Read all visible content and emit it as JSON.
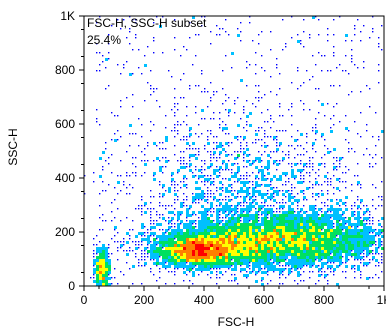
{
  "chart_data": {
    "type": "scatter",
    "plot_kind": "flow cytometry density dot plot",
    "title": "",
    "annotation_gate_name": "FSC-H, SSC-H subset",
    "annotation_percent": "25.4%",
    "xlabel": "FSC-H",
    "ylabel": "SSC-H",
    "xlim": [
      0,
      1000
    ],
    "ylim": [
      0,
      1000
    ],
    "x_ticks": [
      {
        "value": 0,
        "label": "0"
      },
      {
        "value": 200,
        "label": "200"
      },
      {
        "value": 400,
        "label": "400"
      },
      {
        "value": 600,
        "label": "600"
      },
      {
        "value": 800,
        "label": "800"
      },
      {
        "value": 1000,
        "label": "1K"
      }
    ],
    "y_ticks": [
      {
        "value": 0,
        "label": "0"
      },
      {
        "value": 200,
        "label": "200"
      },
      {
        "value": 400,
        "label": "400"
      },
      {
        "value": 600,
        "label": "600"
      },
      {
        "value": 800,
        "label": "800"
      },
      {
        "value": 1000,
        "label": "1K"
      }
    ],
    "density_colormap": [
      "#0000ff",
      "#00c0ff",
      "#00e060",
      "#ffff00",
      "#ff8000",
      "#ff0000"
    ],
    "populations": [
      {
        "name": "",
        "x_center": 380,
        "y_center": 130,
        "x_spread": 70,
        "y_spread": 28,
        "count": 2600
      },
      {
        "name": "",
        "x_center": 560,
        "y_center": 165,
        "x_spread": 150,
        "y_spread": 45,
        "count": 3800
      },
      {
        "name": "",
        "x_center": 760,
        "y_center": 175,
        "x_spread": 140,
        "y_spread": 55,
        "count": 2400
      },
      {
        "name": "",
        "x_center": 60,
        "y_center": 60,
        "x_spread": 12,
        "y_spread": 40,
        "count": 500
      },
      {
        "name": "",
        "x_center": 520,
        "y_center": 330,
        "x_spread": 190,
        "y_spread": 140,
        "count": 1500
      }
    ],
    "scatter_background_count": 850
  }
}
